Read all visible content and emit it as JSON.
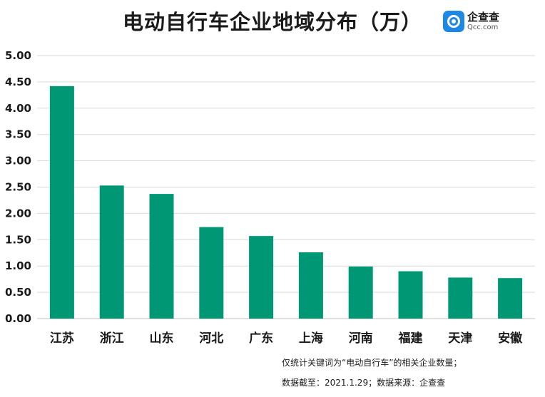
{
  "title": "电动自行车企业地域分布（万）",
  "logo": {
    "name": "企查查",
    "domain": "Qcc.com"
  },
  "notes": {
    "line1": "仅统计关键词为“电动自行车”的相关企业数量；",
    "line2": "数据截至：2021.1.29；数据来源：企查查"
  },
  "colors": {
    "bar": "#009874",
    "grid": "#d9d9d9",
    "logo": "#1e88e5"
  },
  "chart_data": {
    "type": "bar",
    "categories": [
      "江苏",
      "浙江",
      "山东",
      "河北",
      "广东",
      "上海",
      "河南",
      "福建",
      "天津",
      "安徽"
    ],
    "values": [
      4.42,
      2.53,
      2.37,
      1.74,
      1.57,
      1.26,
      0.99,
      0.9,
      0.78,
      0.77
    ],
    "ylim": [
      0,
      5
    ],
    "yticks": [
      "0.00",
      "0.50",
      "1.00",
      "1.50",
      "2.00",
      "2.50",
      "3.00",
      "3.50",
      "4.00",
      "4.50",
      "5.00"
    ],
    "grid": true
  }
}
